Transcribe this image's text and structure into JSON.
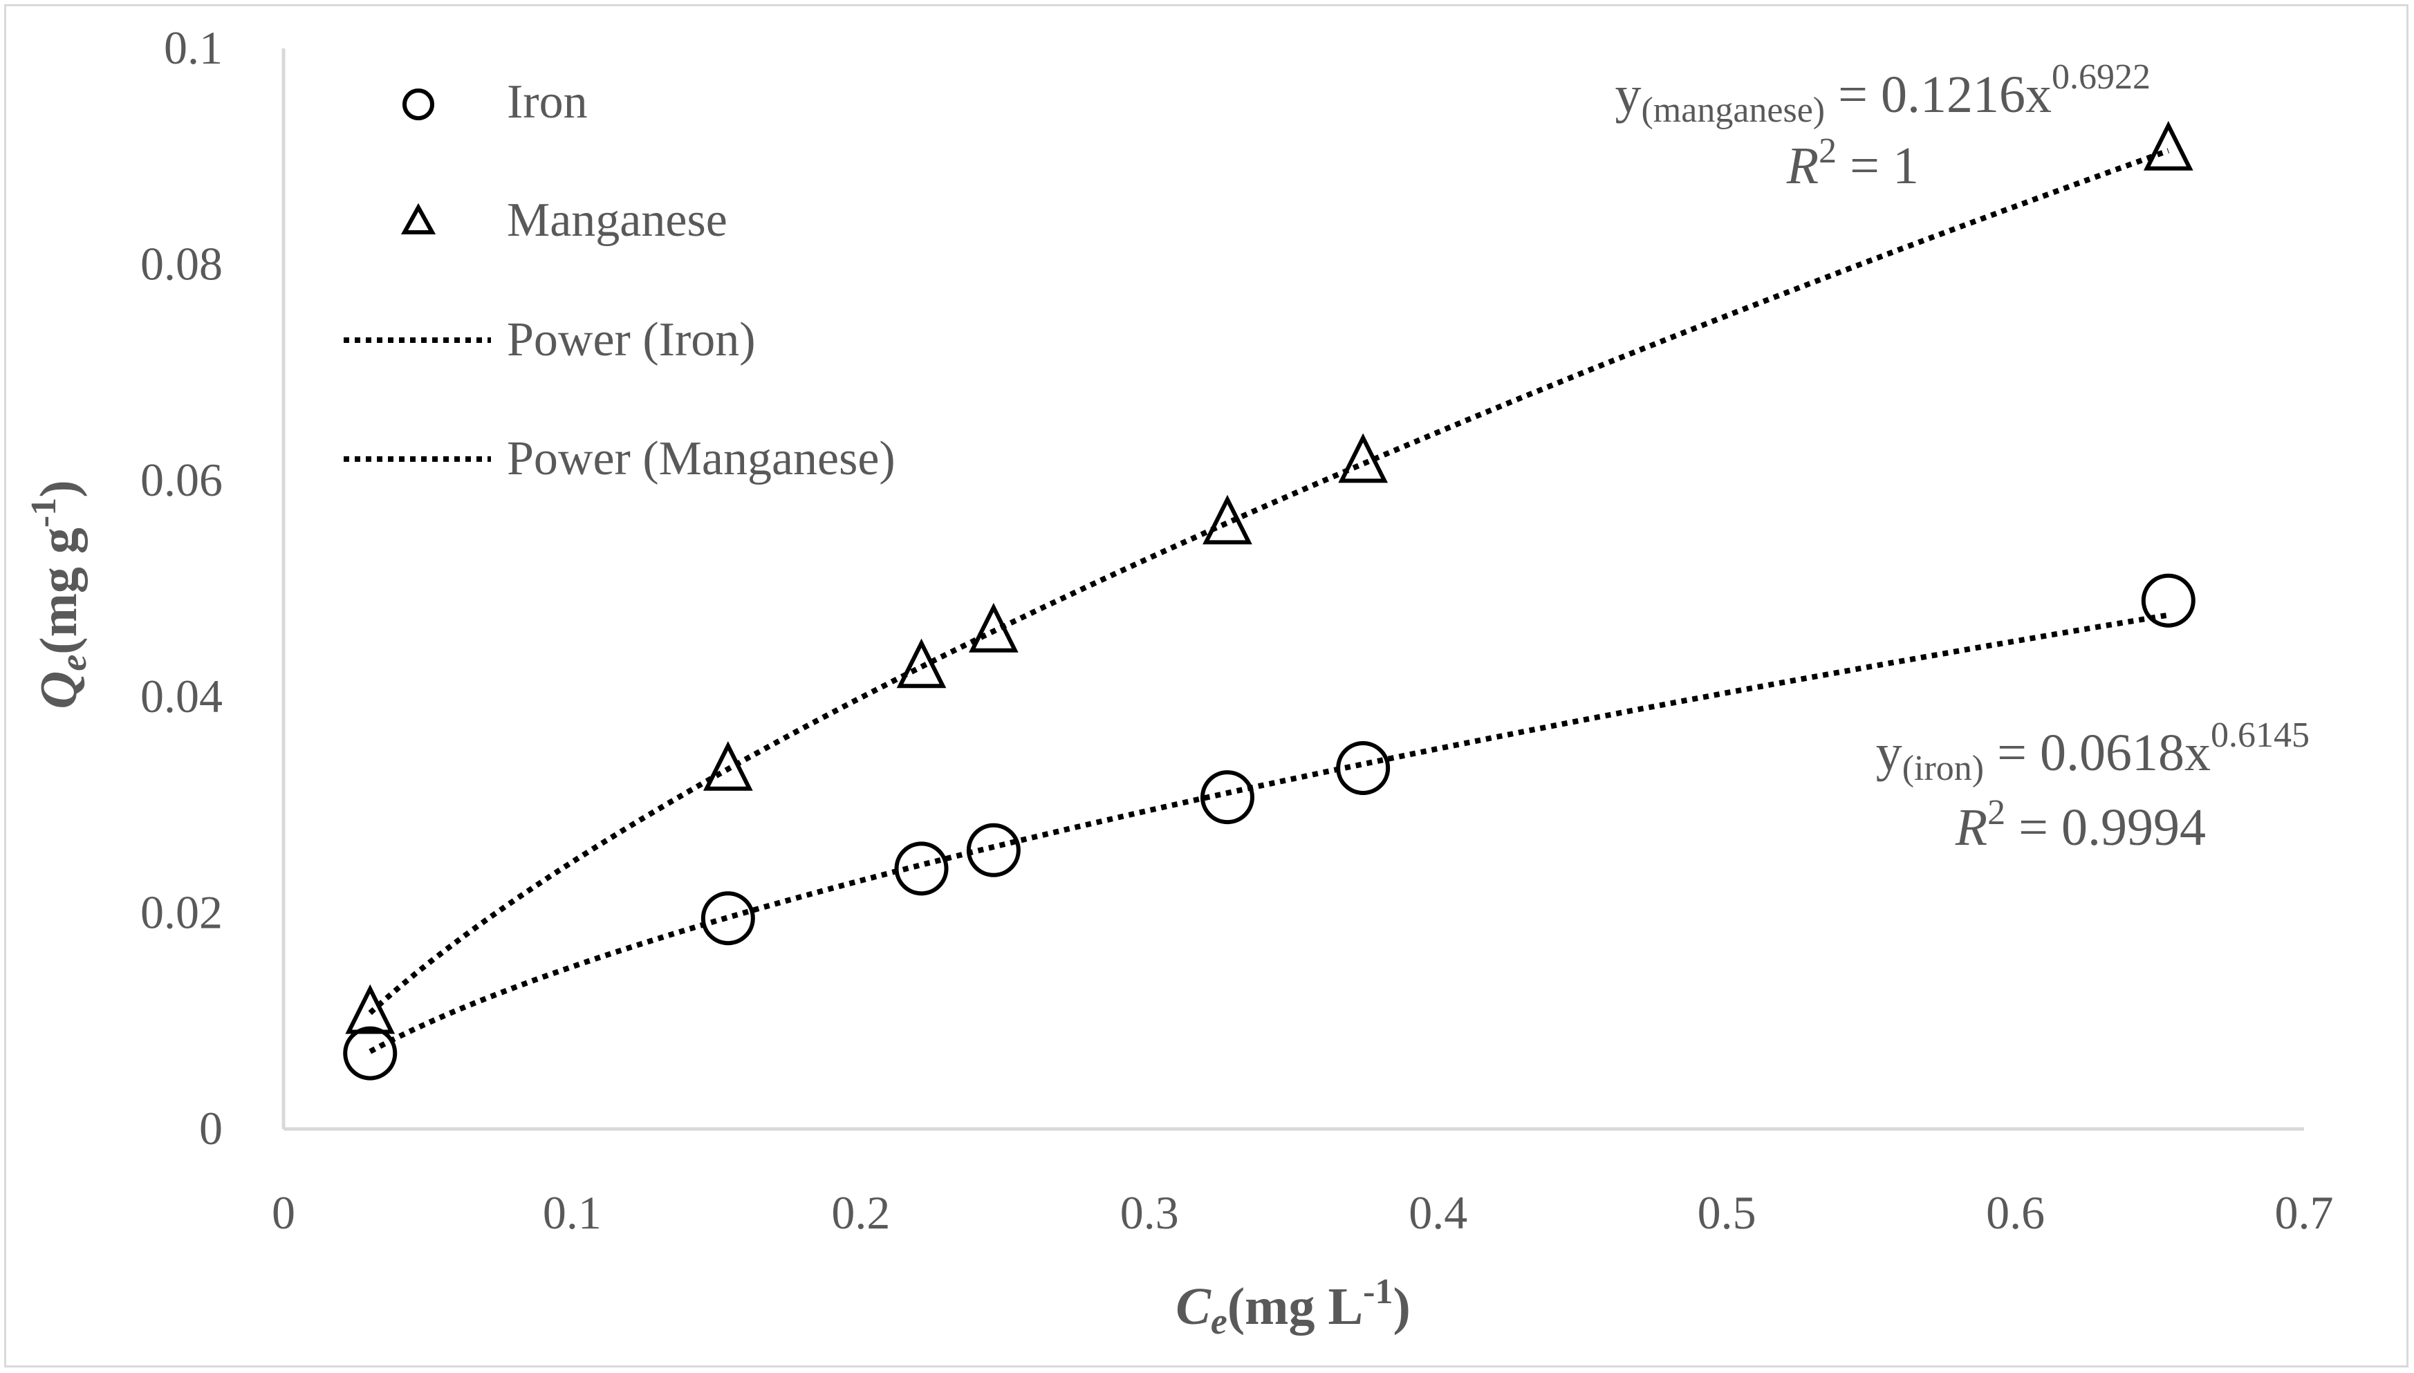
{
  "chart_data": {
    "type": "scatter",
    "title": "",
    "xlabel": {
      "main": "C",
      "sub": "e",
      "unit_pre": "(mg L",
      "sup": "-1",
      "unit_post": ")"
    },
    "ylabel": {
      "main": "Q",
      "sub": "e",
      "unit_pre": "(mg g",
      "sup": "-1",
      "unit_post": ")"
    },
    "xlim": [
      0,
      0.7
    ],
    "ylim": [
      0,
      0.1
    ],
    "xticks": [
      "0",
      "0.1",
      "0.2",
      "0.3",
      "0.4",
      "0.5",
      "0.6",
      "0.7"
    ],
    "yticks": [
      "0",
      "0.02",
      "0.04",
      "0.06",
      "0.08",
      "0.1"
    ],
    "xtick_values": [
      0,
      0.1,
      0.2,
      0.3,
      0.4,
      0.5,
      0.6,
      0.7
    ],
    "ytick_values": [
      0,
      0.02,
      0.04,
      0.06,
      0.08,
      0.1
    ],
    "series": [
      {
        "name": "Iron",
        "marker": "circle",
        "x": [
          0.03,
          0.154,
          0.221,
          0.246,
          0.327,
          0.374,
          0.653
        ],
        "y": [
          0.007,
          0.0195,
          0.0241,
          0.0258,
          0.0307,
          0.0334,
          0.0489
        ],
        "fit": {
          "type": "power",
          "a": 0.0618,
          "b": 0.6145,
          "legend": "Power (Iron)"
        }
      },
      {
        "name": "Manganese",
        "marker": "triangle",
        "x": [
          0.03,
          0.154,
          0.221,
          0.246,
          0.327,
          0.374,
          0.653
        ],
        "y": [
          0.0105,
          0.033,
          0.0425,
          0.0458,
          0.0558,
          0.0615,
          0.0904
        ],
        "fit": {
          "type": "power",
          "a": 0.1216,
          "b": 0.6922,
          "legend": "Power (Manganese)"
        }
      }
    ],
    "legend": {
      "position": "top-left",
      "entries": [
        "Iron",
        "Manganese",
        "Power (Iron)",
        "Power (Manganese)"
      ]
    },
    "annotations": {
      "manganese": {
        "y": "y",
        "sub": "(manganese)",
        "eq": " = 0.1216x",
        "exp": "0.6922",
        "r": "R",
        "r2": "2",
        "r_eq": " = 1"
      },
      "iron": {
        "y": "y",
        "sub": "(iron)",
        "eq": " = 0.0618x",
        "exp": "0.6145",
        "r": "R",
        "r2": "2",
        "r_eq": " = 0.9994"
      }
    },
    "colors": {
      "axis": "#d9d9d9",
      "text": "#595959",
      "marker": "#000000"
    }
  }
}
